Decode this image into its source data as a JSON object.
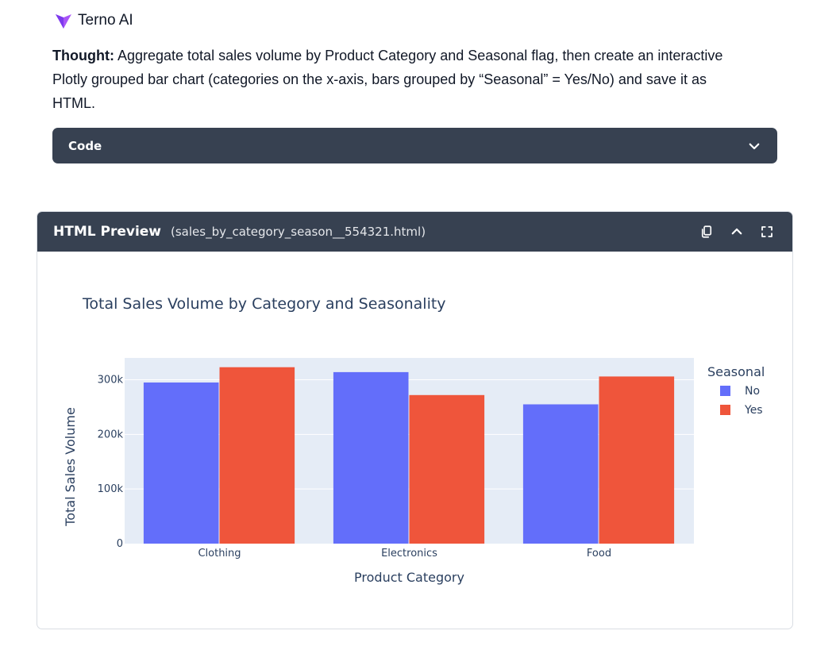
{
  "brand": {
    "name": "Terno AI"
  },
  "thought": {
    "label": "Thought:",
    "text": " Aggregate total sales volume by Product Category and Seasonal flag, then create an interactive Plotly grouped bar chart (categories on the x-axis, bars grouped by “Seasonal” = Yes/No) and save it as HTML."
  },
  "code_panel": {
    "label": "Code",
    "icon": "chevron-down-icon"
  },
  "preview": {
    "title": "HTML Preview",
    "filename": "(sales_by_category_season__554321.html)",
    "icons": [
      "copy-icon",
      "chevron-up-icon",
      "fullscreen-icon"
    ]
  },
  "colors": {
    "no": "#636efa",
    "yes": "#ef553b",
    "plot_bg": "#e5ecf6",
    "header_bg": "#374151"
  },
  "chart_data": {
    "type": "bar",
    "title": "Total Sales Volume by Category and Seasonality",
    "xlabel": "Product Category",
    "ylabel": "Total Sales Volume",
    "categories": [
      "Clothing",
      "Electronics",
      "Food"
    ],
    "series": [
      {
        "name": "No",
        "values": [
          295000,
          314000,
          255000
        ],
        "color": "#636efa"
      },
      {
        "name": "Yes",
        "values": [
          323000,
          272000,
          306000
        ],
        "color": "#ef553b"
      }
    ],
    "ylim": [
      0,
      340000
    ],
    "yticks": [
      0,
      100000,
      200000,
      300000
    ],
    "ytick_labels": [
      "0",
      "100k",
      "200k",
      "300k"
    ],
    "legend_title": "Seasonal",
    "legend_position": "right",
    "grid": true
  }
}
